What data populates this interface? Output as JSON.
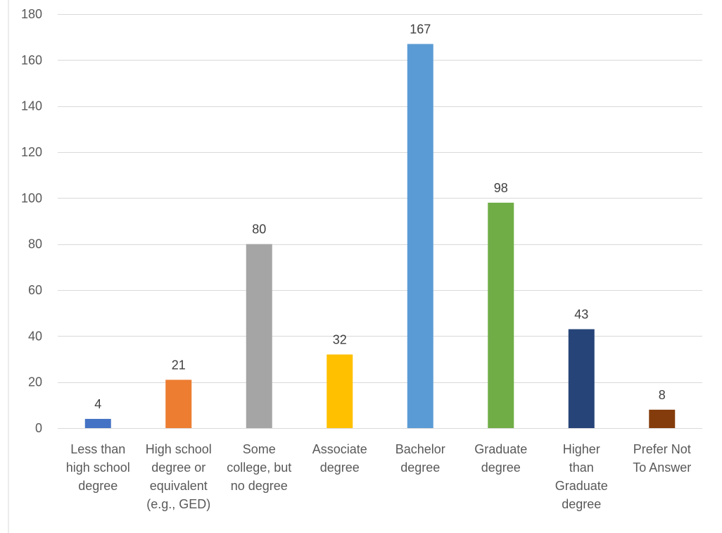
{
  "chart_data": {
    "type": "bar",
    "title": "",
    "xlabel": "",
    "ylabel": "",
    "ylim": [
      0,
      180
    ],
    "yticks": [
      0,
      20,
      40,
      60,
      80,
      100,
      120,
      140,
      160,
      180
    ],
    "grid": true,
    "legend": "none",
    "categories": [
      [
        "Less than",
        "high school",
        "degree"
      ],
      [
        "High school",
        "degree or",
        "equivalent",
        "(e.g., GED)"
      ],
      [
        "Some",
        "college, but",
        "no degree"
      ],
      [
        "Associate",
        "degree"
      ],
      [
        "Bachelor",
        "degree"
      ],
      [
        "Graduate",
        "degree"
      ],
      [
        "Higher",
        "than",
        "Graduate",
        "degree"
      ],
      [
        "Prefer Not",
        "To Answer"
      ]
    ],
    "values": [
      4,
      21,
      80,
      32,
      167,
      98,
      43,
      8
    ],
    "colors": [
      "#4472C4",
      "#ED7D31",
      "#A5A5A5",
      "#FFC000",
      "#5B9BD5",
      "#70AD47",
      "#264478",
      "#843C0C"
    ]
  },
  "style": {
    "gridline_color": "#D9D9D9",
    "axis_line_color": "#D9D9D9",
    "frame_color": "#D9D9D9"
  }
}
